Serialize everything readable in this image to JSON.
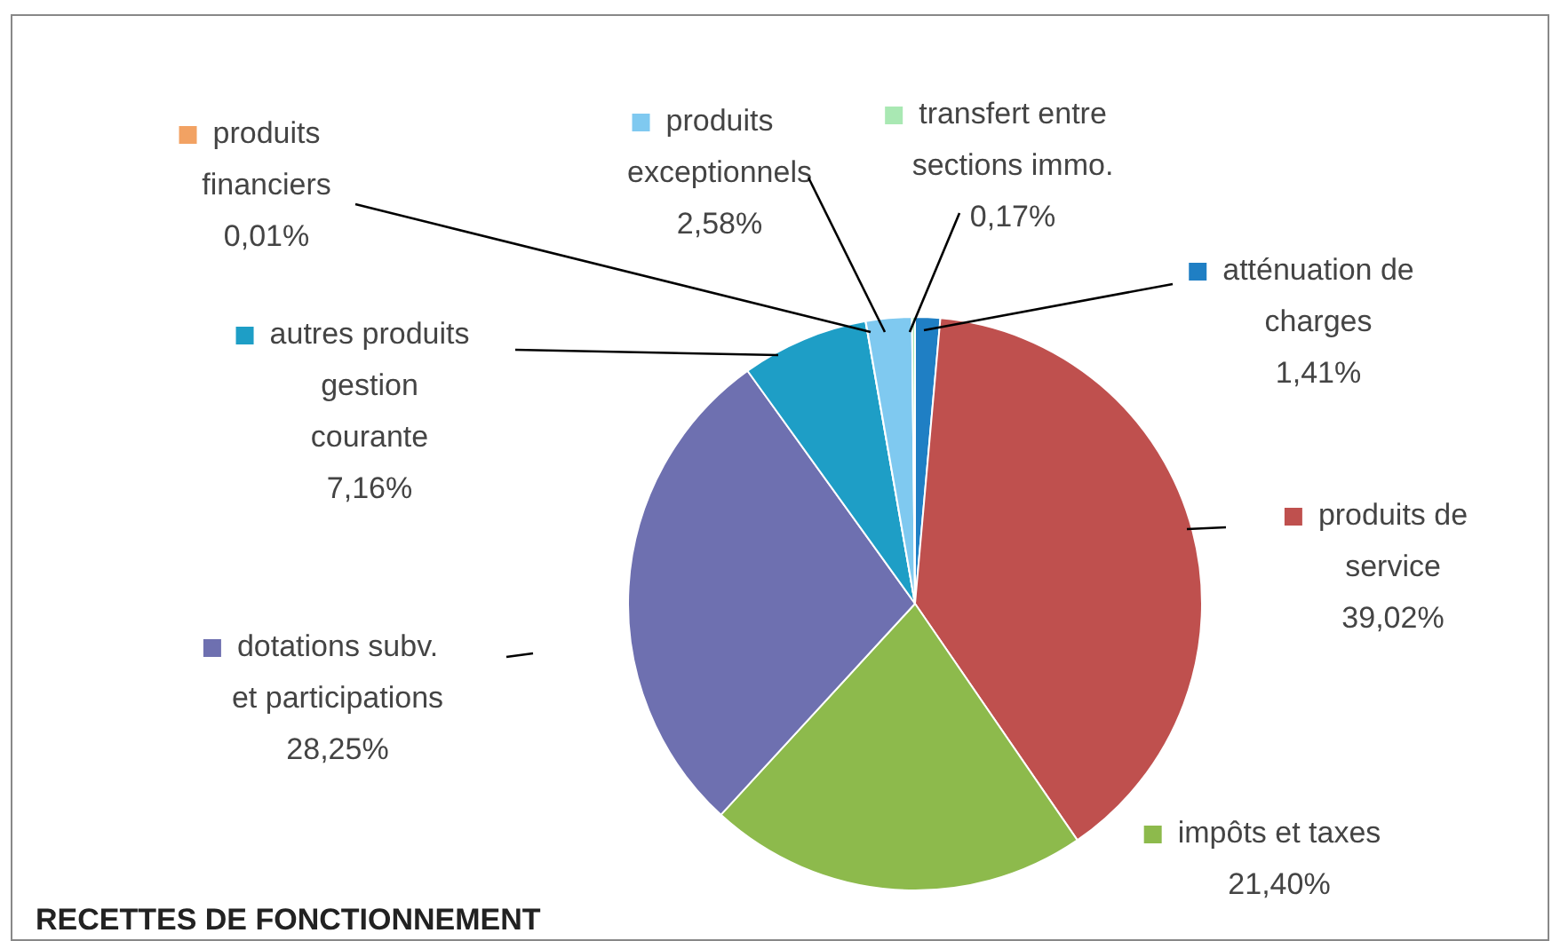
{
  "chart_data": {
    "type": "pie",
    "title": "RECETTES DE FONCTIONNEMENT",
    "categories": [
      "atténuation de charges",
      "produits de service",
      "impôts et taxes",
      "dotations subv. et participations",
      "autres produits gestion courante",
      "produits financiers",
      "produits exceptionnels",
      "transfert entre sections immo."
    ],
    "values": [
      1.41,
      39.02,
      21.4,
      28.25,
      7.16,
      0.01,
      2.58,
      0.17
    ],
    "value_labels": [
      "1,41%",
      "39,02%",
      "21,40%",
      "28,25%",
      "7,16%",
      "0,01%",
      "2,58%",
      "0,17%"
    ],
    "legend": "left",
    "colors": [
      "#1f7fc4",
      "#bf504e",
      "#8dba4c",
      "#6e70b0",
      "#1e9ec6",
      "#f2a263",
      "#7fc9f0",
      "#a9e8b3"
    ]
  }
}
